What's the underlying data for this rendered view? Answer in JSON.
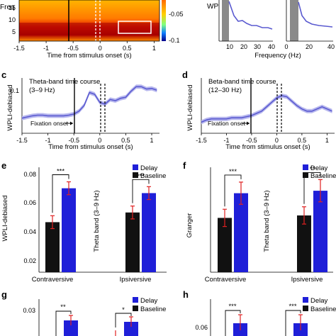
{
  "colors": {
    "delay": "#1f1fd8",
    "baseline": "#111111",
    "trace": "#5a5ad0",
    "band": "#b8b8ee",
    "error": "#e02020",
    "shade": "#8a8a8a"
  },
  "chart_data": [
    {
      "id": "heatmap-top-left",
      "type": "heatmap",
      "ylabel": "Freq",
      "xlabel": "Time from stimulus onset (s)",
      "xticks": [
        "-1.5",
        "-1",
        "-0.5",
        "0",
        "0.5",
        "1"
      ],
      "yticks": [
        "15",
        "10",
        "5"
      ],
      "colorbar_label": "WP",
      "colorbar_ticks": [
        "-0.05",
        "-0.1"
      ],
      "xlim": [
        -1.5,
        1.1
      ],
      "ylim": [
        2,
        18
      ]
    },
    {
      "id": "spectra-top-right",
      "type": "line",
      "ylabel": "WP",
      "xlabel": "Frequency (Hz)",
      "xticks": [
        "10",
        "20",
        "30",
        "40",
        "0",
        "20",
        "40"
      ]
    },
    {
      "id": "panel-c",
      "panel_letter": "c",
      "type": "line",
      "title": "Theta-band time course",
      "subtitle": "(3–9 Hz)",
      "ylabel": "WPLI-debiased",
      "xlabel": "Time from stimulus onset (s)",
      "annotation": "Fixation onset",
      "xticks": [
        "-1.5",
        "-1",
        "-0.5",
        "0",
        "0.5",
        "1"
      ],
      "xlim": [
        -1.5,
        1.15
      ],
      "ylim": [
        0.02,
        0.115
      ],
      "x": [
        -1.5,
        -1.4,
        -1.3,
        -1.2,
        -1.1,
        -1.0,
        -0.9,
        -0.8,
        -0.7,
        -0.6,
        -0.5,
        -0.4,
        -0.3,
        -0.2,
        -0.1,
        0.0,
        0.1,
        0.2,
        0.3,
        0.4,
        0.5,
        0.6,
        0.7,
        0.8,
        0.9,
        1.0,
        1.1
      ],
      "values": [
        0.046,
        0.048,
        0.05,
        0.051,
        0.051,
        0.05,
        0.05,
        0.05,
        0.05,
        0.051,
        0.053,
        0.058,
        0.068,
        0.09,
        0.087,
        0.073,
        0.07,
        0.078,
        0.076,
        0.08,
        0.082,
        0.092,
        0.1,
        0.1,
        0.096,
        0.097,
        0.094
      ]
    },
    {
      "id": "panel-d",
      "panel_letter": "d",
      "type": "line",
      "title": "Beta-band time course",
      "subtitle": "(12–30 Hz)",
      "ylabel": "WPLI-debiased",
      "xlabel": "Time from stimulus onset (s)",
      "annotation": "Fixation onset",
      "xticks": [
        "-1.5",
        "-1",
        "-0.5",
        "0",
        "0.5",
        "1"
      ],
      "xlim": [
        -1.5,
        1.15
      ],
      "ylim": [
        0.0,
        0.05
      ],
      "x": [
        -1.5,
        -1.4,
        -1.3,
        -1.2,
        -1.1,
        -1.0,
        -0.9,
        -0.8,
        -0.7,
        -0.6,
        -0.5,
        -0.4,
        -0.3,
        -0.2,
        -0.1,
        0.0,
        0.1,
        0.2,
        0.3,
        0.4,
        0.5,
        0.6,
        0.7,
        0.8,
        0.9,
        1.0,
        1.1
      ],
      "values": [
        0.01,
        0.012,
        0.013,
        0.013,
        0.013,
        0.013,
        0.014,
        0.014,
        0.014,
        0.015,
        0.016,
        0.018,
        0.02,
        0.024,
        0.028,
        0.032,
        0.034,
        0.033,
        0.029,
        0.025,
        0.022,
        0.02,
        0.02,
        0.022,
        0.024,
        0.022,
        0.02
      ]
    },
    {
      "id": "panel-e",
      "panel_letter": "e",
      "type": "bar",
      "ylabel": "WPLI-debiased",
      "band_label": "Theta band (3–9 Hz)",
      "categories": [
        "Contraversive",
        "Ipsiversive"
      ],
      "legend": [
        "Delay",
        "Baseline"
      ],
      "yticks": [
        "0.08",
        "0.06",
        "0.04",
        "0.02"
      ],
      "ylim": [
        0.02,
        0.085
      ],
      "series": [
        {
          "name": "Baseline",
          "values": [
            0.051,
            0.057
          ],
          "err": [
            0.004,
            0.004
          ]
        },
        {
          "name": "Delay",
          "values": [
            0.072,
            0.069
          ],
          "err": [
            0.004,
            0.004
          ]
        }
      ],
      "significance": [
        "***",
        "***"
      ]
    },
    {
      "id": "panel-f",
      "panel_letter": "f",
      "type": "bar",
      "ylabel": "Granger",
      "band_label": "Theta band (3–9 Hz)",
      "categories": [
        "Contraversive",
        "Ipsiversive"
      ],
      "legend": [
        "Delay",
        "Baseline"
      ],
      "series": [
        {
          "name": "Baseline",
          "values": [
            0.044,
            0.046
          ],
          "err": [
            0.007,
            0.007
          ]
        },
        {
          "name": "Delay",
          "values": [
            0.064,
            0.066
          ],
          "err": [
            0.009,
            0.009
          ]
        }
      ],
      "ylim": [
        0.0,
        0.085
      ],
      "significance": [
        "***",
        "**"
      ]
    },
    {
      "id": "panel-g",
      "panel_letter": "g",
      "type": "bar",
      "legend": [
        "Delay",
        "Baseline"
      ],
      "yticks": [
        "0.03"
      ],
      "significance": [
        "**",
        "*"
      ]
    },
    {
      "id": "panel-h",
      "panel_letter": "h",
      "type": "bar",
      "legend": [
        "Delay",
        "Baseline"
      ],
      "yticks": [
        "0.06"
      ],
      "significance": [
        "***",
        "***"
      ]
    }
  ]
}
